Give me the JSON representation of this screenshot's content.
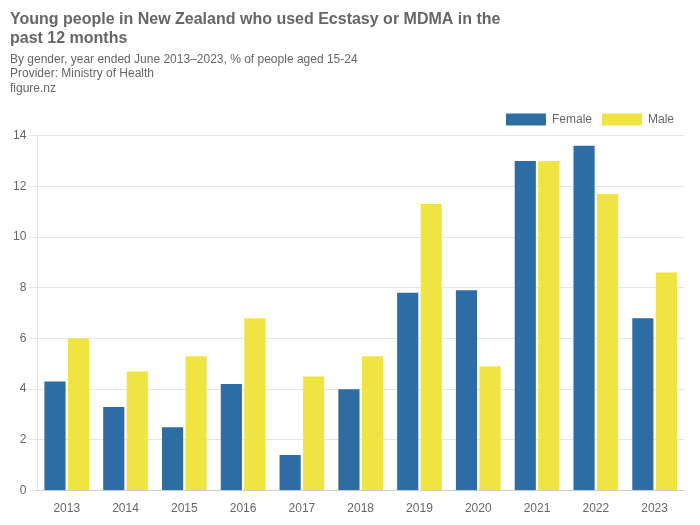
{
  "chart_data": {
    "type": "bar",
    "title": [
      "Young people in New Zealand who used Ecstasy or MDMA in the",
      "past 12 months"
    ],
    "subtitle": "By gender, year ended June 2013–2023, % of people aged 15-24",
    "annotations": [
      "Provider: Ministry of Health",
      "figure.nz"
    ],
    "categories": [
      "2013",
      "2014",
      "2015",
      "2016",
      "2017",
      "2018",
      "2019",
      "2020",
      "2021",
      "2022",
      "2023"
    ],
    "series": [
      {
        "name": "Female",
        "color": "#2e6da4",
        "values": [
          4.3,
          3.3,
          2.5,
          4.2,
          1.4,
          4.0,
          7.8,
          7.9,
          13.0,
          13.6,
          6.8
        ]
      },
      {
        "name": "Male",
        "color": "#f0e442",
        "values": [
          6.0,
          4.7,
          5.3,
          6.8,
          4.5,
          5.3,
          11.3,
          4.9,
          13.0,
          11.7,
          8.6
        ]
      }
    ],
    "ylim": [
      0,
      14
    ],
    "yticks": [
      0,
      2,
      4,
      6,
      8,
      10,
      12,
      14
    ],
    "grid": true,
    "legend": "upper right"
  }
}
